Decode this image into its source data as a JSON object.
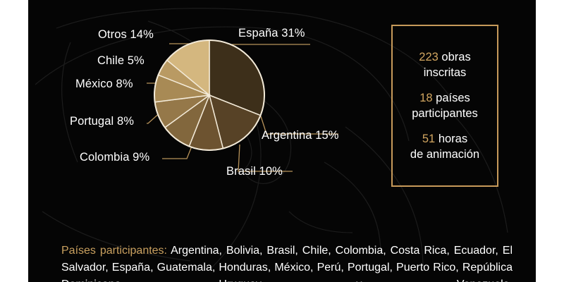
{
  "chart_data": {
    "type": "pie",
    "slices": [
      {
        "label": "España 31%",
        "name": "España",
        "value": 31,
        "color": "#3d2f1a"
      },
      {
        "label": "Argentina 15%",
        "name": "Argentina",
        "value": 15,
        "color": "#574226"
      },
      {
        "label": "Brasil 10%",
        "name": "Brasil",
        "value": 10,
        "color": "#6d5330"
      },
      {
        "label": "Colombia 9%",
        "name": "Colombia",
        "value": 9,
        "color": "#82673d"
      },
      {
        "label": "Portugal 8%",
        "name": "Portugal",
        "value": 8,
        "color": "#957849"
      },
      {
        "label": "México 8%",
        "name": "México",
        "value": 8,
        "color": "#a88a55"
      },
      {
        "label": "Chile 5%",
        "name": "Chile",
        "value": 5,
        "color": "#b99a63"
      },
      {
        "label": "Otros 14%",
        "name": "Otros",
        "value": 14,
        "color": "#d4b77f"
      }
    ]
  },
  "stats": [
    {
      "num": "223",
      "rest1": "obras",
      "line2": "inscritas"
    },
    {
      "num": "18",
      "rest1": "países",
      "line2": "participantes"
    },
    {
      "num": "51",
      "rest1": "horas",
      "line2": "de animación"
    }
  ],
  "countries": {
    "label": "Países participantes:",
    "text": "Argentina, Bolivia, Brasil, Chile, Colombia, Costa Rica, Ecuador, El Salvador, España, Guatemala, Honduras, México, Perú, Portugal, Puerto Rico, República Dominicana, Uruguay y Venezuela."
  },
  "colors": {
    "background": "#050505",
    "accent": "#c79a5a",
    "label_line": "#b8935a"
  }
}
